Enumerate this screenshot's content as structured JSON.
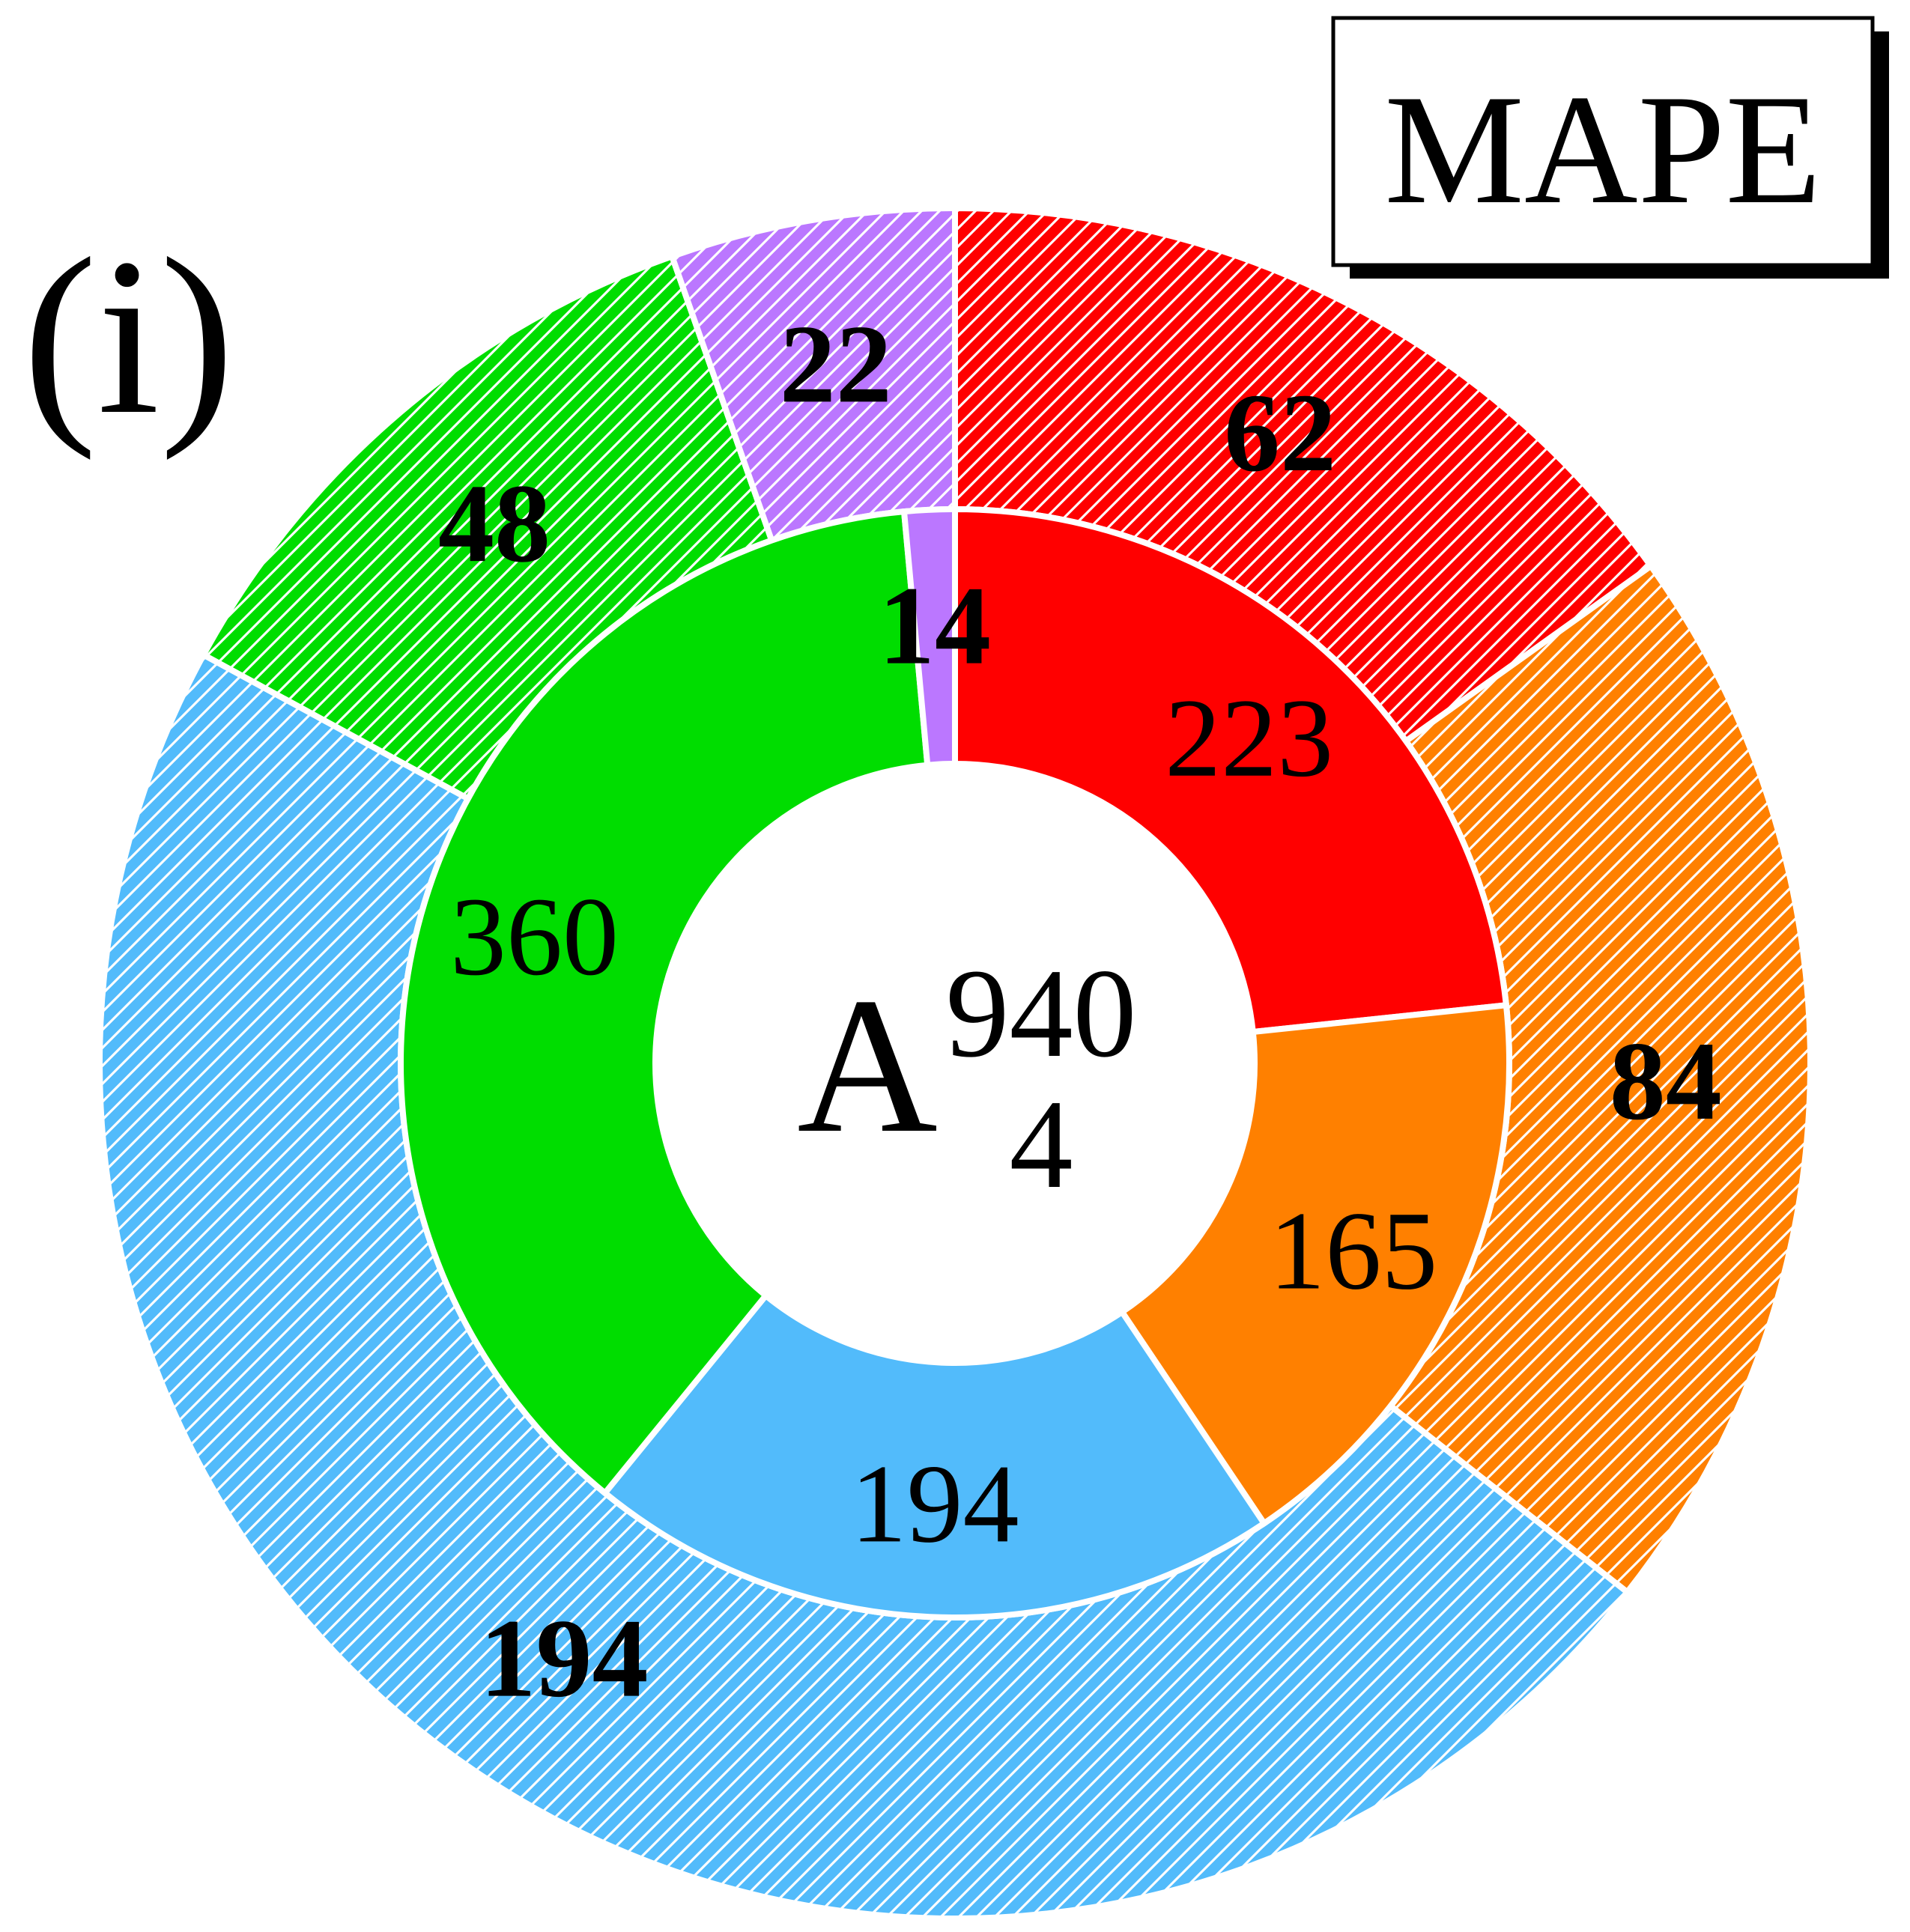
{
  "panel_label": "(i)",
  "legend": {
    "text": "MAPE"
  },
  "center": {
    "letter": "A",
    "top": "940",
    "bottom": "4"
  },
  "chart_data": {
    "type": "pie",
    "subtype": "nested-donut",
    "colors": {
      "red": "#ff0000",
      "orange": "#ff8000",
      "blue": "#52bbfb",
      "green": "#00dd00",
      "purple": "#bb77ff",
      "separator": "#ffffff",
      "hatch": "#ffffff"
    },
    "inner_ring": [
      {
        "label": "223",
        "value": 223,
        "color": "#ff0000"
      },
      {
        "label": "165",
        "value": 165,
        "color": "#ff8000"
      },
      {
        "label": "194",
        "value": 194,
        "color": "#52bbfb"
      },
      {
        "label": "360",
        "value": 360,
        "color": "#00dd00"
      },
      {
        "label": "14",
        "value": 14,
        "color": "#bb77ff"
      }
    ],
    "outer_ring": {
      "pattern": "diagonal-hatch",
      "segments": [
        {
          "label": "62",
          "value": 62,
          "color": "#ff0000"
        },
        {
          "label": "84",
          "value": 84,
          "color": "#ff8000"
        },
        {
          "label": "194",
          "value": 194,
          "color": "#52bbfb"
        },
        {
          "label": "48",
          "value": 48,
          "color": "#00dd00"
        },
        {
          "label": "22",
          "value": 22,
          "color": "#bb77ff"
        }
      ]
    }
  }
}
